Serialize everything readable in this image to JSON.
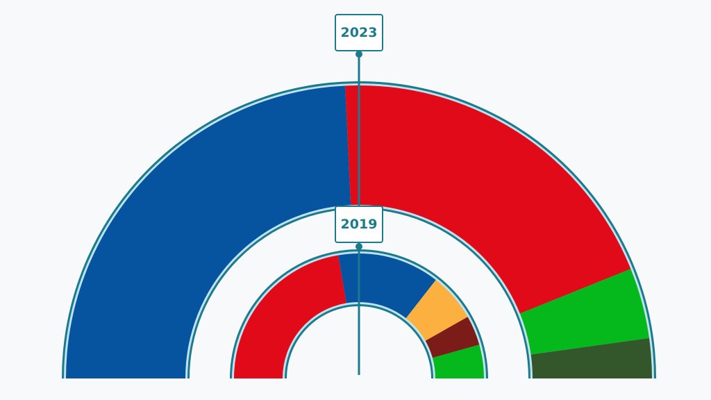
{
  "chart_data": {
    "type": "pie",
    "subtype": "nested-semicircle-parliament",
    "title": "",
    "rings": [
      {
        "year_label": "2023",
        "position": "outer",
        "series": [
          {
            "name": "Blue party",
            "color": "#0654a0",
            "share_pct": 48.5
          },
          {
            "name": "Red party",
            "color": "#e10a19",
            "share_pct": 39.3
          },
          {
            "name": "Green party",
            "color": "#05b81c",
            "share_pct": 7.8
          },
          {
            "name": "Dark green party",
            "color": "#33562b",
            "share_pct": 4.4
          }
        ]
      },
      {
        "year_label": "2019",
        "position": "inner",
        "series": [
          {
            "name": "Red party",
            "color": "#e10a19",
            "share_pct": 44.7
          },
          {
            "name": "Blue party",
            "color": "#0654a0",
            "share_pct": 26.4
          },
          {
            "name": "Orange party",
            "color": "#fbb040",
            "share_pct": 12.5
          },
          {
            "name": "Dark red party",
            "color": "#7c1c18",
            "share_pct": 7.7
          },
          {
            "name": "Green party",
            "color": "#05b81c",
            "share_pct": 8.7
          }
        ]
      }
    ]
  },
  "labels": {
    "outer": "2023",
    "inner": "2019"
  },
  "colors": {
    "accent": "#1b7a8c",
    "outline_light": "#bfe3f0",
    "background": "#f7f9fb"
  }
}
